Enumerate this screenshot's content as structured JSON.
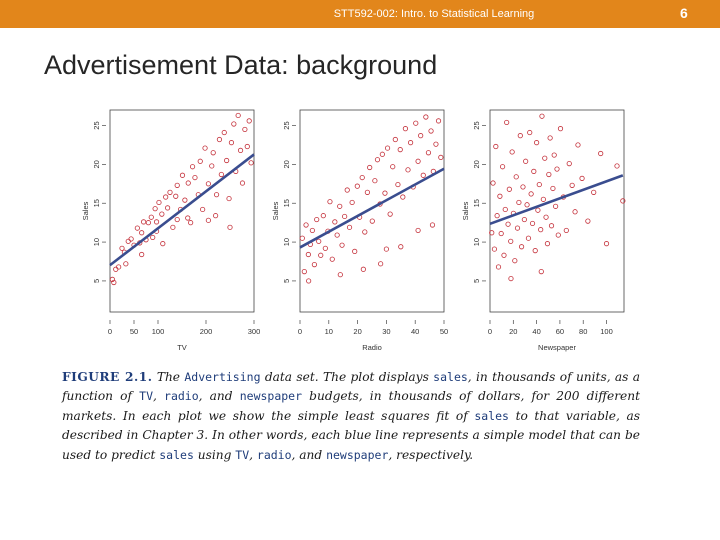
{
  "header": {
    "course": "STT592-002: Intro. to Statistical Learning",
    "page_number": "6",
    "bar_color": "#e2861b"
  },
  "slide": {
    "title": "Advertisement Data: background"
  },
  "caption": {
    "figure_label": "FIGURE 2.1.",
    "segments": [
      {
        "t": "The ",
        "c": false
      },
      {
        "t": "Advertising",
        "c": true
      },
      {
        "t": " data set. The plot displays ",
        "c": false
      },
      {
        "t": "sales",
        "c": true
      },
      {
        "t": ", in thousands of units, as a function of ",
        "c": false
      },
      {
        "t": "TV",
        "c": true
      },
      {
        "t": ", ",
        "c": false
      },
      {
        "t": "radio",
        "c": true
      },
      {
        "t": ", and ",
        "c": false
      },
      {
        "t": "newspaper",
        "c": true
      },
      {
        "t": " budgets, in thousands of dollars, for 200 different markets. In each plot we show the simple least squares fit of ",
        "c": false
      },
      {
        "t": "sales",
        "c": true
      },
      {
        "t": " to that variable, as described in Chapter 3. In other words, each blue line represents a simple model that can be used to predict ",
        "c": false
      },
      {
        "t": "sales",
        "c": true
      },
      {
        "t": " using ",
        "c": false
      },
      {
        "t": "TV",
        "c": true
      },
      {
        "t": ", ",
        "c": false
      },
      {
        "t": "radio",
        "c": true
      },
      {
        "t": ", and ",
        "c": false
      },
      {
        "t": "newspaper",
        "c": true
      },
      {
        "t": ", respectively.",
        "c": false
      }
    ]
  },
  "chart_data": [
    {
      "type": "scatter",
      "xlabel": "TV",
      "ylabel": "Sales",
      "xlim": [
        0,
        300
      ],
      "ylim": [
        1,
        27
      ],
      "x_ticks": [
        0,
        50,
        100,
        200,
        300
      ],
      "y_ticks": [
        5,
        10,
        15,
        20,
        25
      ],
      "fit_line": {
        "intercept": 7.03,
        "slope": 0.0475,
        "x_range": [
          0,
          300
        ]
      },
      "point_color": "#c4303a",
      "line_color": "#3a4d8f",
      "points": [
        [
          5,
          5.2
        ],
        [
          8,
          4.8
        ],
        [
          12,
          6.5
        ],
        [
          18,
          6.8
        ],
        [
          25,
          9.2
        ],
        [
          30,
          8.7
        ],
        [
          38,
          10.1
        ],
        [
          44,
          10.4
        ],
        [
          50,
          9.6
        ],
        [
          57,
          11.8
        ],
        [
          62,
          9.9
        ],
        [
          66,
          11.2
        ],
        [
          70,
          12.6
        ],
        [
          75,
          10.3
        ],
        [
          80,
          12.5
        ],
        [
          86,
          13.2
        ],
        [
          89,
          10.6
        ],
        [
          94,
          14.3
        ],
        [
          97,
          11.4
        ],
        [
          102,
          15.1
        ],
        [
          108,
          13.6
        ],
        [
          110,
          9.8
        ],
        [
          116,
          15.8
        ],
        [
          120,
          14.4
        ],
        [
          125,
          16.4
        ],
        [
          131,
          11.9
        ],
        [
          137,
          15.9
        ],
        [
          140,
          17.3
        ],
        [
          147,
          14.2
        ],
        [
          151,
          18.6
        ],
        [
          156,
          15.4
        ],
        [
          163,
          17.6
        ],
        [
          168,
          12.5
        ],
        [
          172,
          19.7
        ],
        [
          177,
          18.3
        ],
        [
          184,
          16.1
        ],
        [
          188,
          20.4
        ],
        [
          193,
          14.2
        ],
        [
          198,
          22.1
        ],
        [
          205,
          17.5
        ],
        [
          212,
          19.8
        ],
        [
          215,
          21.5
        ],
        [
          222,
          16.1
        ],
        [
          228,
          23.2
        ],
        [
          232,
          18.7
        ],
        [
          238,
          24.1
        ],
        [
          243,
          20.5
        ],
        [
          248,
          15.6
        ],
        [
          253,
          22.8
        ],
        [
          258,
          25.2
        ],
        [
          262,
          19.1
        ],
        [
          267,
          26.3
        ],
        [
          272,
          21.8
        ],
        [
          276,
          17.6
        ],
        [
          281,
          24.5
        ],
        [
          286,
          22.3
        ],
        [
          290,
          25.6
        ],
        [
          294,
          20.2
        ],
        [
          97,
          12.6
        ],
        [
          140,
          12.9
        ],
        [
          205,
          12.8
        ],
        [
          250,
          11.9
        ],
        [
          33,
          7.2
        ],
        [
          66,
          8.4
        ],
        [
          162,
          13.1
        ],
        [
          220,
          13.4
        ]
      ]
    },
    {
      "type": "scatter",
      "xlabel": "Radio",
      "ylabel": "Sales",
      "xlim": [
        0,
        50
      ],
      "ylim": [
        1,
        27
      ],
      "x_ticks": [
        0,
        10,
        20,
        30,
        40,
        50
      ],
      "y_ticks": [
        5,
        10,
        15,
        20,
        25
      ],
      "fit_line": {
        "intercept": 9.31,
        "slope": 0.2025,
        "x_range": [
          0,
          50
        ]
      },
      "point_color": "#c4303a",
      "line_color": "#3a4d8f",
      "points": [
        [
          0.8,
          10.5
        ],
        [
          1.5,
          6.2
        ],
        [
          2.1,
          12.2
        ],
        [
          2.9,
          8.4
        ],
        [
          3.6,
          9.7
        ],
        [
          4.3,
          11.5
        ],
        [
          5.0,
          7.1
        ],
        [
          5.8,
          12.9
        ],
        [
          6.5,
          10.1
        ],
        [
          7.2,
          8.3
        ],
        [
          8.1,
          13.4
        ],
        [
          8.8,
          9.2
        ],
        [
          9.7,
          11.4
        ],
        [
          10.4,
          15.2
        ],
        [
          11.2,
          7.8
        ],
        [
          12.1,
          12.6
        ],
        [
          12.9,
          10.9
        ],
        [
          13.8,
          14.6
        ],
        [
          14.6,
          9.6
        ],
        [
          15.5,
          13.3
        ],
        [
          16.4,
          16.7
        ],
        [
          17.2,
          11.9
        ],
        [
          18.1,
          15.1
        ],
        [
          19.0,
          8.8
        ],
        [
          19.9,
          17.2
        ],
        [
          20.7,
          13.2
        ],
        [
          21.6,
          18.3
        ],
        [
          22.5,
          11.3
        ],
        [
          23.4,
          16.4
        ],
        [
          24.2,
          19.6
        ],
        [
          25.1,
          12.7
        ],
        [
          26.0,
          17.9
        ],
        [
          26.9,
          20.6
        ],
        [
          27.8,
          14.9
        ],
        [
          28.6,
          21.3
        ],
        [
          29.5,
          16.3
        ],
        [
          30.4,
          22.1
        ],
        [
          31.3,
          13.6
        ],
        [
          32.2,
          19.7
        ],
        [
          33.1,
          23.2
        ],
        [
          34.0,
          17.4
        ],
        [
          34.8,
          21.9
        ],
        [
          35.7,
          15.8
        ],
        [
          36.6,
          24.6
        ],
        [
          37.5,
          19.3
        ],
        [
          38.4,
          22.8
        ],
        [
          39.3,
          17.1
        ],
        [
          40.2,
          25.3
        ],
        [
          41.0,
          20.4
        ],
        [
          41.9,
          23.7
        ],
        [
          42.8,
          18.6
        ],
        [
          43.7,
          26.1
        ],
        [
          44.6,
          21.5
        ],
        [
          45.5,
          24.3
        ],
        [
          46.3,
          19.1
        ],
        [
          47.2,
          22.6
        ],
        [
          48.1,
          25.6
        ],
        [
          48.9,
          20.9
        ],
        [
          3.0,
          5.0
        ],
        [
          22.0,
          6.5
        ],
        [
          28.0,
          7.2
        ],
        [
          35.0,
          9.4
        ],
        [
          41.0,
          11.5
        ],
        [
          46.0,
          12.2
        ],
        [
          14.0,
          5.8
        ],
        [
          30.0,
          9.1
        ]
      ]
    },
    {
      "type": "scatter",
      "xlabel": "Newspaper",
      "ylabel": "Sales",
      "xlim": [
        0,
        115
      ],
      "ylim": [
        1,
        27
      ],
      "x_ticks": [
        0,
        20,
        40,
        60,
        80,
        100
      ],
      "y_ticks": [
        5,
        10,
        15,
        20,
        25
      ],
      "fit_line": {
        "intercept": 12.35,
        "slope": 0.0547,
        "x_range": [
          0,
          114
        ]
      },
      "point_color": "#c4303a",
      "line_color": "#3a4d8f",
      "points": [
        [
          1.5,
          11.2
        ],
        [
          2.6,
          17.6
        ],
        [
          3.8,
          9.1
        ],
        [
          5.0,
          22.3
        ],
        [
          6.1,
          13.4
        ],
        [
          7.3,
          6.8
        ],
        [
          8.5,
          15.9
        ],
        [
          9.6,
          11.1
        ],
        [
          10.8,
          19.7
        ],
        [
          12.0,
          8.3
        ],
        [
          13.1,
          14.2
        ],
        [
          14.3,
          25.4
        ],
        [
          15.5,
          12.3
        ],
        [
          16.6,
          16.8
        ],
        [
          17.8,
          10.1
        ],
        [
          19.0,
          21.6
        ],
        [
          20.1,
          13.7
        ],
        [
          21.3,
          7.6
        ],
        [
          22.5,
          18.4
        ],
        [
          23.6,
          11.8
        ],
        [
          24.8,
          15.1
        ],
        [
          26.0,
          23.7
        ],
        [
          27.1,
          9.4
        ],
        [
          28.3,
          17.1
        ],
        [
          29.5,
          12.9
        ],
        [
          30.6,
          20.4
        ],
        [
          31.8,
          14.8
        ],
        [
          33.0,
          10.5
        ],
        [
          34.1,
          24.1
        ],
        [
          35.3,
          16.2
        ],
        [
          36.5,
          12.4
        ],
        [
          37.6,
          19.1
        ],
        [
          38.8,
          8.9
        ],
        [
          40.0,
          22.8
        ],
        [
          41.1,
          14.1
        ],
        [
          42.3,
          17.4
        ],
        [
          43.5,
          11.6
        ],
        [
          44.6,
          26.2
        ],
        [
          45.8,
          15.5
        ],
        [
          47.0,
          20.8
        ],
        [
          48.1,
          13.2
        ],
        [
          49.3,
          9.8
        ],
        [
          50.5,
          18.7
        ],
        [
          51.6,
          23.4
        ],
        [
          52.8,
          12.1
        ],
        [
          54.0,
          16.9
        ],
        [
          55.1,
          21.2
        ],
        [
          56.3,
          14.6
        ],
        [
          57.5,
          19.4
        ],
        [
          58.6,
          10.9
        ],
        [
          60.5,
          24.6
        ],
        [
          63.0,
          15.8
        ],
        [
          65.5,
          11.5
        ],
        [
          68.0,
          20.1
        ],
        [
          70.5,
          17.3
        ],
        [
          73.0,
          13.9
        ],
        [
          75.5,
          22.5
        ],
        [
          79.0,
          18.2
        ],
        [
          84.0,
          12.7
        ],
        [
          89.0,
          16.4
        ],
        [
          95.0,
          21.4
        ],
        [
          100.0,
          9.8
        ],
        [
          109.0,
          19.8
        ],
        [
          114.0,
          15.3
        ],
        [
          18.0,
          5.3
        ],
        [
          44.0,
          6.2
        ]
      ]
    }
  ]
}
